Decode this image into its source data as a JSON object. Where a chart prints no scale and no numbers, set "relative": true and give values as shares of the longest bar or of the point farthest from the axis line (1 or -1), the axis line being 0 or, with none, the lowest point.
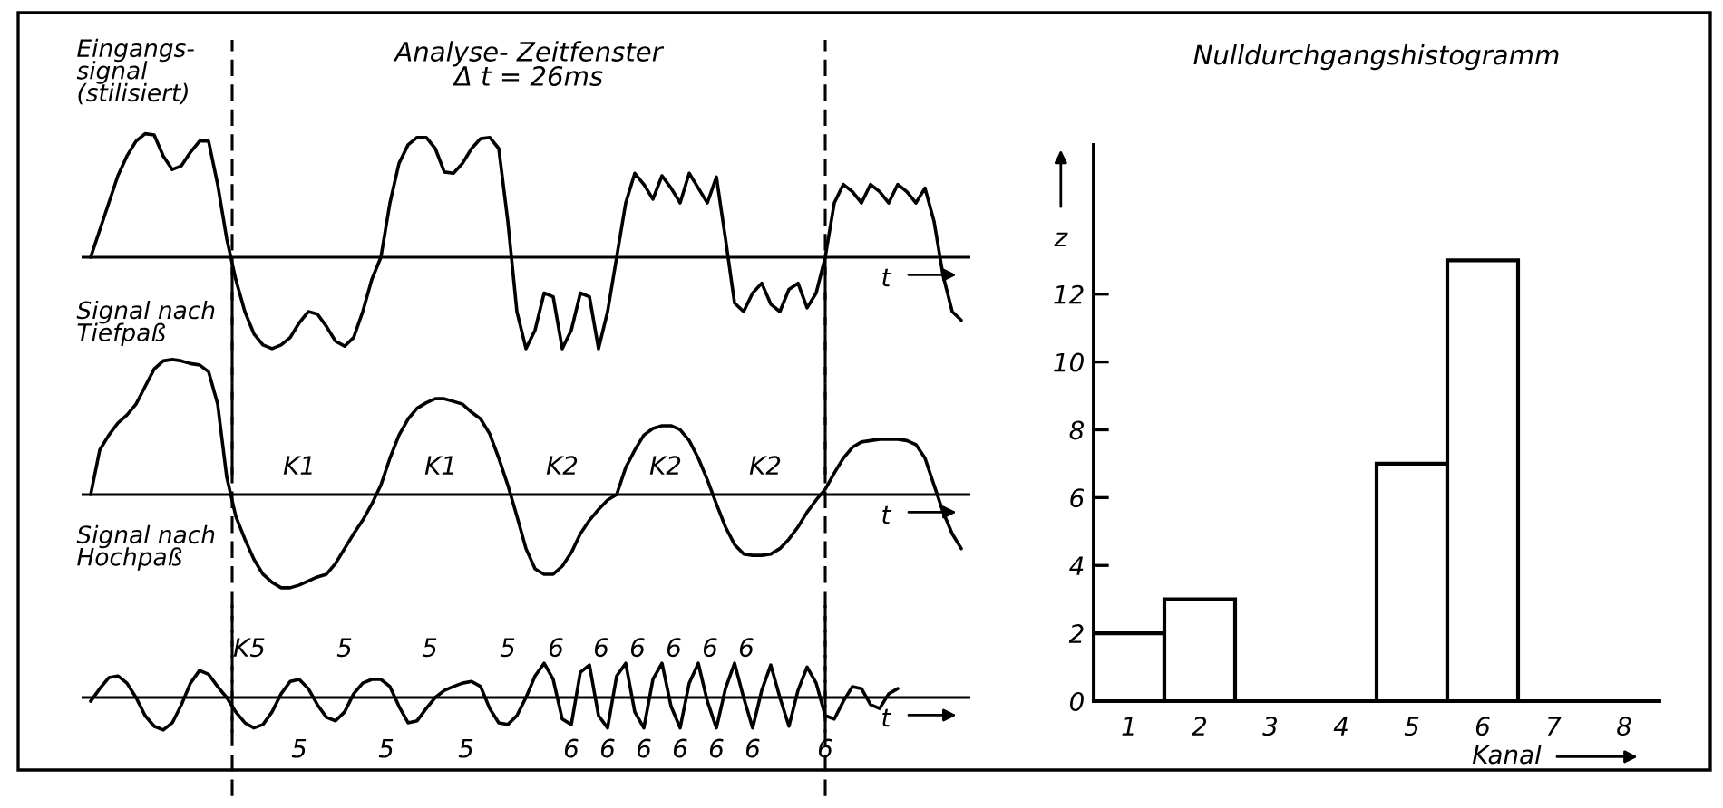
{
  "chart_data": [
    {
      "type": "line",
      "relative": true,
      "title": "Analyse- Zeitfenster\nΔ t = 26ms",
      "xlabel": "t",
      "tick_labels": false,
      "grid": false,
      "annotations": [
        "Eingangs-\nsignal\n(stilisiert)"
      ],
      "categories": [
        null,
        null,
        null,
        null,
        null,
        null,
        null,
        null,
        null,
        null,
        null,
        null,
        null,
        null,
        null,
        null,
        null,
        null,
        null,
        null,
        null,
        null,
        null,
        null,
        null,
        null,
        null,
        null,
        null,
        null,
        null,
        null,
        null,
        null,
        null,
        null,
        null,
        null,
        null,
        null,
        null,
        null,
        null,
        null,
        null,
        null,
        null,
        null,
        null,
        null,
        null,
        null,
        null,
        null,
        null,
        null,
        null,
        null,
        null,
        null,
        null,
        null,
        null,
        null,
        null,
        null,
        null,
        null,
        null,
        null,
        null,
        null,
        null,
        null,
        null,
        null,
        null,
        null,
        null,
        null,
        null,
        null,
        null,
        null,
        null,
        null,
        null,
        null,
        null,
        null,
        null,
        null,
        null,
        null,
        null,
        null,
        null
      ],
      "series": [
        {
          "color": "#000000",
          "values": [
            0,
            0.22,
            0.44,
            0.66,
            0.82,
            0.94,
            1,
            0.99,
            0.82,
            0.71,
            0.74,
            0.85,
            0.94,
            0.94,
            0.59,
            0.15,
            -0.18,
            -0.44,
            -0.62,
            -0.71,
            -0.74,
            -0.71,
            -0.65,
            -0.53,
            -0.44,
            -0.46,
            -0.56,
            -0.68,
            -0.72,
            -0.65,
            -0.44,
            -0.18,
            0,
            0.44,
            0.76,
            0.91,
            0.97,
            0.97,
            0.88,
            0.69,
            0.68,
            0.76,
            0.88,
            0.96,
            0.97,
            0.88,
            0.29,
            -0.44,
            -0.74,
            -0.59,
            -0.29,
            -0.32,
            -0.74,
            -0.59,
            -0.29,
            -0.32,
            -0.74,
            -0.44,
            0,
            0.44,
            0.68,
            0.59,
            0.47,
            0.66,
            0.56,
            0.44,
            0.68,
            0.56,
            0.44,
            0.65,
            0.15,
            -0.37,
            -0.44,
            -0.29,
            -0.21,
            -0.38,
            -0.44,
            -0.26,
            -0.21,
            -0.41,
            -0.29,
            0,
            0.44,
            0.59,
            0.53,
            0.44,
            0.59,
            0.53,
            0.44,
            0.59,
            0.53,
            0.44,
            0.56,
            0.29,
            -0.15,
            -0.44,
            -0.51
          ]
        }
      ]
    },
    {
      "type": "line",
      "relative": true,
      "xlabel": "t",
      "tick_labels": false,
      "grid": false,
      "annotations": [
        "Signal nach\nTiefpaß",
        "K1",
        "K1",
        "K2",
        "K2",
        "K2"
      ],
      "categories": [
        null,
        null,
        null,
        null,
        null,
        null,
        null,
        null,
        null,
        null,
        null,
        null,
        null,
        null,
        null,
        null,
        null,
        null,
        null,
        null,
        null,
        null,
        null,
        null,
        null,
        null,
        null,
        null,
        null,
        null,
        null,
        null,
        null,
        null,
        null,
        null,
        null,
        null,
        null,
        null,
        null,
        null,
        null,
        null,
        null,
        null,
        null,
        null,
        null,
        null,
        null,
        null,
        null,
        null,
        null,
        null,
        null,
        null,
        null,
        null,
        null,
        null,
        null,
        null,
        null,
        null,
        null,
        null,
        null,
        null,
        null,
        null,
        null,
        null,
        null,
        null,
        null,
        null,
        null,
        null,
        null,
        null,
        null,
        null,
        null,
        null,
        null,
        null,
        null,
        null,
        null,
        null,
        null,
        null,
        null,
        null,
        null
      ],
      "series": [
        {
          "color": "#000000",
          "values": [
            0,
            0.33,
            0.44,
            0.53,
            0.59,
            0.67,
            0.8,
            0.93,
            0.99,
            1,
            0.99,
            0.97,
            0.96,
            0.91,
            0.67,
            0.13,
            -0.16,
            -0.33,
            -0.48,
            -0.59,
            -0.65,
            -0.69,
            -0.69,
            -0.67,
            -0.64,
            -0.61,
            -0.59,
            -0.51,
            -0.4,
            -0.29,
            -0.19,
            -0.07,
            0.07,
            0.27,
            0.44,
            0.56,
            0.64,
            0.68,
            0.71,
            0.71,
            0.69,
            0.67,
            0.61,
            0.56,
            0.45,
            0.27,
            0.07,
            -0.16,
            -0.4,
            -0.55,
            -0.59,
            -0.59,
            -0.53,
            -0.43,
            -0.29,
            -0.19,
            -0.11,
            -0.04,
            0,
            0.2,
            0.33,
            0.44,
            0.49,
            0.51,
            0.51,
            0.48,
            0.4,
            0.27,
            0.11,
            -0.07,
            -0.24,
            -0.37,
            -0.44,
            -0.45,
            -0.45,
            -0.44,
            -0.4,
            -0.33,
            -0.24,
            -0.13,
            -0.04,
            0.04,
            0.16,
            0.27,
            0.35,
            0.39,
            0.4,
            0.41,
            0.41,
            0.41,
            0.4,
            0.37,
            0.27,
            0.07,
            -0.13,
            -0.29,
            -0.4
          ]
        }
      ]
    },
    {
      "type": "line",
      "relative": true,
      "xlabel": "t",
      "tick_labels": false,
      "grid": false,
      "annotations": [
        "Signal nach\nHochpaß",
        "K5",
        "5",
        "5",
        "5",
        "5",
        "5",
        "5",
        "6",
        "6",
        "6",
        "6",
        "6",
        "6",
        "6",
        "6",
        "6",
        "6",
        "6",
        "6",
        "6"
      ],
      "categories": [
        null,
        null,
        null,
        null,
        null,
        null,
        null,
        null,
        null,
        null,
        null,
        null,
        null,
        null,
        null,
        null,
        null,
        null,
        null,
        null,
        null,
        null,
        null,
        null,
        null,
        null,
        null,
        null,
        null,
        null,
        null,
        null,
        null,
        null,
        null,
        null,
        null,
        null,
        null,
        null,
        null,
        null,
        null,
        null,
        null,
        null,
        null,
        null,
        null,
        null,
        null,
        null,
        null,
        null,
        null,
        null,
        null,
        null,
        null,
        null,
        null,
        null,
        null,
        null,
        null,
        null,
        null,
        null,
        null,
        null,
        null,
        null,
        null,
        null,
        null,
        null,
        null,
        null,
        null,
        null,
        null,
        null,
        null,
        null,
        null,
        null,
        null,
        null,
        null,
        null,
        null,
        null,
        null,
        null,
        null,
        null,
        null
      ],
      "series": [
        {
          "color": "#000000",
          "values": [
            -0.11,
            0.26,
            0.58,
            0.63,
            0.42,
            0,
            -0.53,
            -0.84,
            -0.95,
            -0.74,
            -0.21,
            0.42,
            0.79,
            0.68,
            0.32,
            0,
            -0.42,
            -0.74,
            -0.89,
            -0.79,
            -0.42,
            0.11,
            0.47,
            0.53,
            0.26,
            -0.21,
            -0.58,
            -0.68,
            -0.42,
            0.11,
            0.42,
            0.53,
            0.53,
            0.32,
            -0.26,
            -0.74,
            -0.68,
            -0.32,
            0,
            0.21,
            0.32,
            0.42,
            0.47,
            0.32,
            -0.32,
            -0.74,
            -0.79,
            -0.53,
            0,
            0.63,
            1,
            0.53,
            -0.63,
            -0.79,
            0.74,
            0.95,
            -0.53,
            -0.89,
            0.63,
            1,
            -0.42,
            -0.89,
            0.53,
            1,
            -0.26,
            -0.89,
            0.42,
            1,
            -0.11,
            -0.89,
            0.26,
            1,
            0,
            -0.89,
            0.21,
            0.95,
            0,
            -0.84,
            0.21,
            0.89,
            0.42,
            -0.53,
            -0.63,
            -0.11,
            0.32,
            0.26,
            -0.21,
            -0.32,
            0.11,
            0.26,
            null,
            null,
            null,
            null,
            null,
            null,
            null
          ]
        }
      ]
    },
    {
      "type": "bar",
      "title": "Nulldurchgangshistogramm",
      "xlabel": "Kanal",
      "ylabel": "z",
      "grid": false,
      "categories": [
        "1",
        "2",
        "3",
        "4",
        "5",
        "6",
        "7",
        "8"
      ],
      "values": [
        2,
        3,
        0,
        0,
        7,
        13,
        0,
        0
      ],
      "color": "#000000",
      "ylim": [
        0,
        16.4
      ],
      "yticks": [
        0,
        2,
        4,
        6,
        8,
        10,
        12
      ]
    }
  ]
}
